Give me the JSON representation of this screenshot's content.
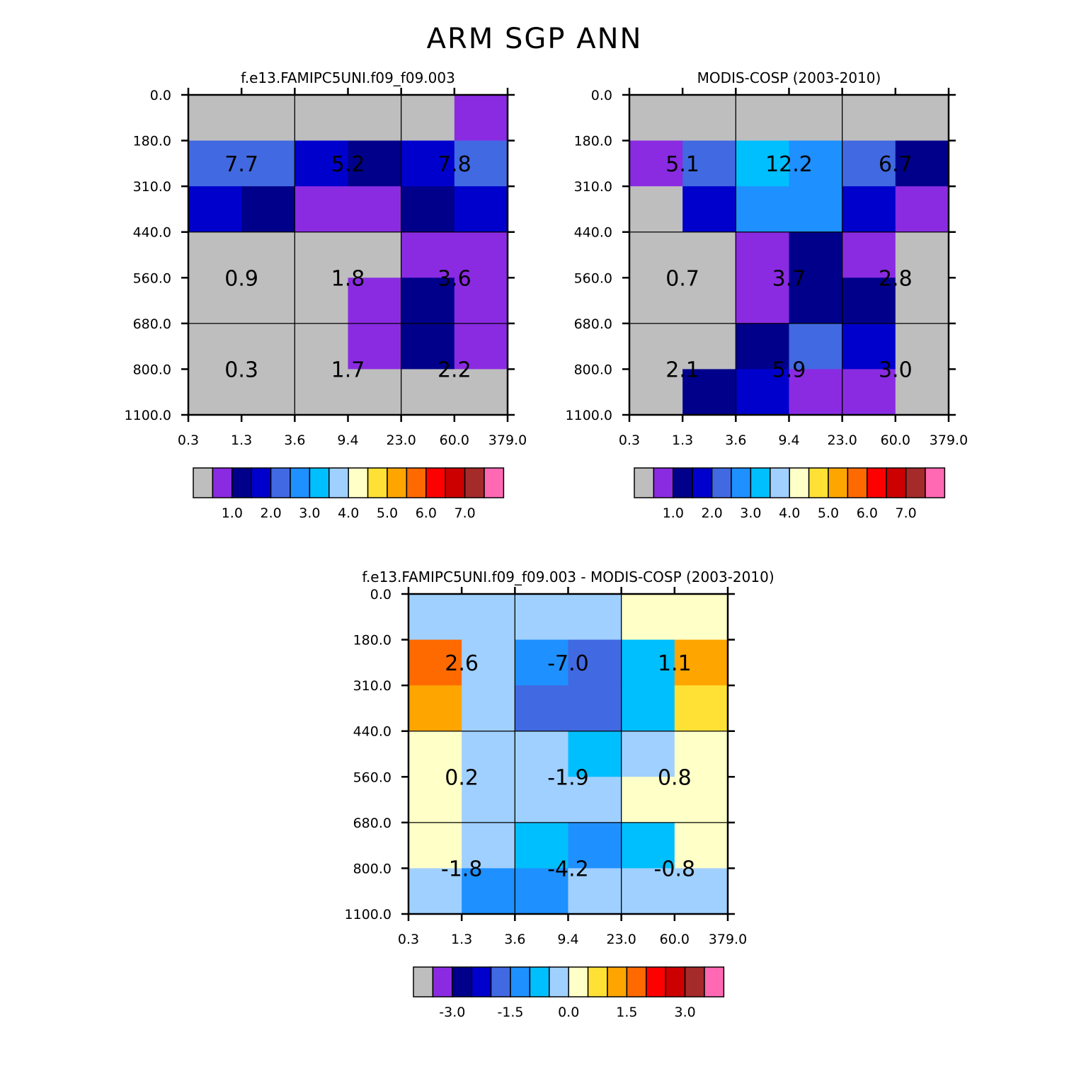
{
  "title": "ARM SGP ANN",
  "chart_data": [
    {
      "type": "heatmap",
      "title": "f.e13.FAMIPC5UNI.f09_f09.003",
      "x_tick_labels": [
        "0.3",
        "1.3",
        "3.6",
        "9.4",
        "23.0",
        "60.0",
        "379.0"
      ],
      "y_tick_labels": [
        "0.0",
        "180.0",
        "310.0",
        "440.0",
        "560.0",
        "680.0",
        "800.0",
        "1100.0"
      ],
      "cells": [
        [
          "#bebebe",
          "#bebebe",
          "#bebebe",
          "#bebebe",
          "#bebebe",
          "#8a2be2"
        ],
        [
          "#4169e1",
          "#4169e1",
          "#0000cd",
          "#00008b",
          "#0000cd",
          "#4169e1"
        ],
        [
          "#0000cd",
          "#00008b",
          "#8a2be2",
          "#8a2be2",
          "#00008b",
          "#0000cd"
        ],
        [
          "#bebebe",
          "#bebebe",
          "#bebebe",
          "#bebebe",
          "#8a2be2",
          "#8a2be2"
        ],
        [
          "#bebebe",
          "#bebebe",
          "#bebebe",
          "#8a2be2",
          "#00008b",
          "#8a2be2"
        ],
        [
          "#bebebe",
          "#bebebe",
          "#bebebe",
          "#8a2be2",
          "#00008b",
          "#8a2be2"
        ],
        [
          "#bebebe",
          "#bebebe",
          "#bebebe",
          "#bebebe",
          "#bebebe",
          "#bebebe"
        ]
      ],
      "box_values": [
        [
          "7.7",
          "5.2",
          "7.8"
        ],
        [
          "0.9",
          "1.8",
          "3.6"
        ],
        [
          "0.3",
          "1.7",
          "2.2"
        ]
      ],
      "colorbar_colors": [
        "#bebebe",
        "#8a2be2",
        "#00008b",
        "#0000cd",
        "#4169e1",
        "#1e90ff",
        "#00bfff",
        "#a0d0ff",
        "#ffffc8",
        "#ffe135",
        "#ffa500",
        "#ff6a00",
        "#ff0000",
        "#cd0000",
        "#a52a2a",
        "#ff69b4"
      ],
      "colorbar_labels": [
        "1.0",
        "2.0",
        "3.0",
        "4.0",
        "5.0",
        "6.0",
        "7.0"
      ]
    },
    {
      "type": "heatmap",
      "title": "MODIS-COSP (2003-2010)",
      "x_tick_labels": [
        "0.3",
        "1.3",
        "3.6",
        "9.4",
        "23.0",
        "60.0",
        "379.0"
      ],
      "y_tick_labels": [
        "0.0",
        "180.0",
        "310.0",
        "440.0",
        "560.0",
        "680.0",
        "800.0",
        "1100.0"
      ],
      "cells": [
        [
          "#bebebe",
          "#bebebe",
          "#bebebe",
          "#bebebe",
          "#bebebe",
          "#bebebe"
        ],
        [
          "#8a2be2",
          "#4169e1",
          "#00bfff",
          "#1e90ff",
          "#4169e1",
          "#00008b"
        ],
        [
          "#bebebe",
          "#0000cd",
          "#1e90ff",
          "#1e90ff",
          "#0000cd",
          "#8a2be2"
        ],
        [
          "#bebebe",
          "#bebebe",
          "#8a2be2",
          "#00008b",
          "#8a2be2",
          "#bebebe"
        ],
        [
          "#bebebe",
          "#bebebe",
          "#8a2be2",
          "#00008b",
          "#00008b",
          "#bebebe"
        ],
        [
          "#bebebe",
          "#bebebe",
          "#00008b",
          "#4169e1",
          "#0000cd",
          "#bebebe"
        ],
        [
          "#bebebe",
          "#00008b",
          "#0000cd",
          "#8a2be2",
          "#8a2be2",
          "#bebebe"
        ]
      ],
      "box_values": [
        [
          "5.1",
          "12.2",
          "6.7"
        ],
        [
          "0.7",
          "3.7",
          "2.8"
        ],
        [
          "2.1",
          "5.9",
          "3.0"
        ]
      ],
      "colorbar_colors": [
        "#bebebe",
        "#8a2be2",
        "#00008b",
        "#0000cd",
        "#4169e1",
        "#1e90ff",
        "#00bfff",
        "#a0d0ff",
        "#ffffc8",
        "#ffe135",
        "#ffa500",
        "#ff6a00",
        "#ff0000",
        "#cd0000",
        "#a52a2a",
        "#ff69b4"
      ],
      "colorbar_labels": [
        "1.0",
        "2.0",
        "3.0",
        "4.0",
        "5.0",
        "6.0",
        "7.0"
      ]
    },
    {
      "type": "heatmap",
      "title": "f.e13.FAMIPC5UNI.f09_f09.003 - MODIS-COSP (2003-2010)",
      "x_tick_labels": [
        "0.3",
        "1.3",
        "3.6",
        "9.4",
        "23.0",
        "60.0",
        "379.0"
      ],
      "y_tick_labels": [
        "0.0",
        "180.0",
        "310.0",
        "440.0",
        "560.0",
        "680.0",
        "800.0",
        "1100.0"
      ],
      "cells": [
        [
          "#a0d0ff",
          "#a0d0ff",
          "#a0d0ff",
          "#a0d0ff",
          "#ffffc8",
          "#ffffc8"
        ],
        [
          "#ff6a00",
          "#a0d0ff",
          "#1e90ff",
          "#4169e1",
          "#00bfff",
          "#ffa500"
        ],
        [
          "#ffa500",
          "#a0d0ff",
          "#4169e1",
          "#4169e1",
          "#00bfff",
          "#ffe135"
        ],
        [
          "#ffffc8",
          "#a0d0ff",
          "#a0d0ff",
          "#00bfff",
          "#a0d0ff",
          "#ffffc8"
        ],
        [
          "#ffffc8",
          "#a0d0ff",
          "#a0d0ff",
          "#a0d0ff",
          "#ffffc8",
          "#ffffc8"
        ],
        [
          "#ffffc8",
          "#a0d0ff",
          "#00bfff",
          "#1e90ff",
          "#00bfff",
          "#ffffc8"
        ],
        [
          "#a0d0ff",
          "#1e90ff",
          "#1e90ff",
          "#a0d0ff",
          "#a0d0ff",
          "#a0d0ff"
        ]
      ],
      "box_values": [
        [
          "2.6",
          "-7.0",
          "1.1"
        ],
        [
          "0.2",
          "-1.9",
          "0.8"
        ],
        [
          "-1.8",
          "-4.2",
          "-0.8"
        ]
      ],
      "colorbar_colors": [
        "#bebebe",
        "#8a2be2",
        "#00008b",
        "#0000cd",
        "#4169e1",
        "#1e90ff",
        "#00bfff",
        "#a0d0ff",
        "#ffffc8",
        "#ffe135",
        "#ffa500",
        "#ff6a00",
        "#ff0000",
        "#cd0000",
        "#a52a2a",
        "#ff69b4"
      ],
      "colorbar_labels": [
        "-3.0",
        "-1.5",
        "0.0",
        "1.5",
        "3.0"
      ]
    }
  ]
}
